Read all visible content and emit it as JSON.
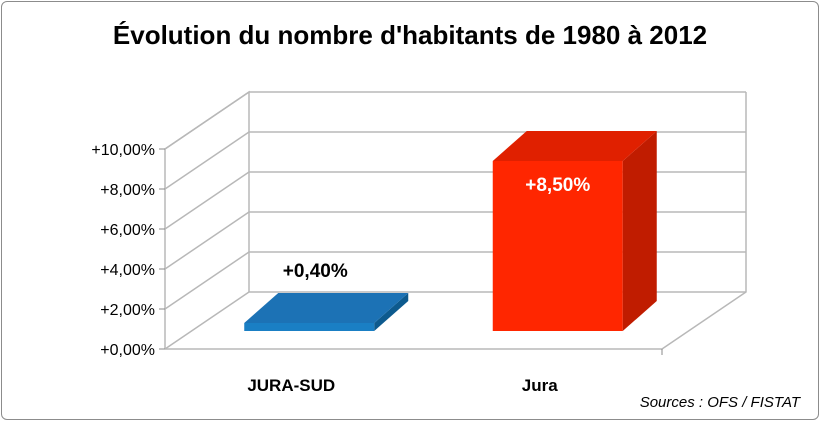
{
  "title": "Évolution du nombre d'habitants de 1980 à 2012",
  "source": "Sources : OFS / FISTAT",
  "colors": {
    "jura_sud": "#1a7fc4",
    "jura": "#ff2600",
    "grid": "#b8b8b8"
  },
  "chart_data": {
    "type": "bar",
    "title": "Évolution du nombre d'habitants de 1980 à 2012",
    "categories": [
      "JURA-SUD",
      "Jura"
    ],
    "values": [
      0.4,
      8.5
    ],
    "data_labels": [
      "+0,40%",
      "+8,50%"
    ],
    "y_ticks": [
      "+0,00%",
      "+2,00%",
      "+4,00%",
      "+6,00%",
      "+8,00%",
      "+10,00%"
    ],
    "ylim": [
      0,
      10
    ],
    "grid": true,
    "legend": "none",
    "style": "3d"
  }
}
